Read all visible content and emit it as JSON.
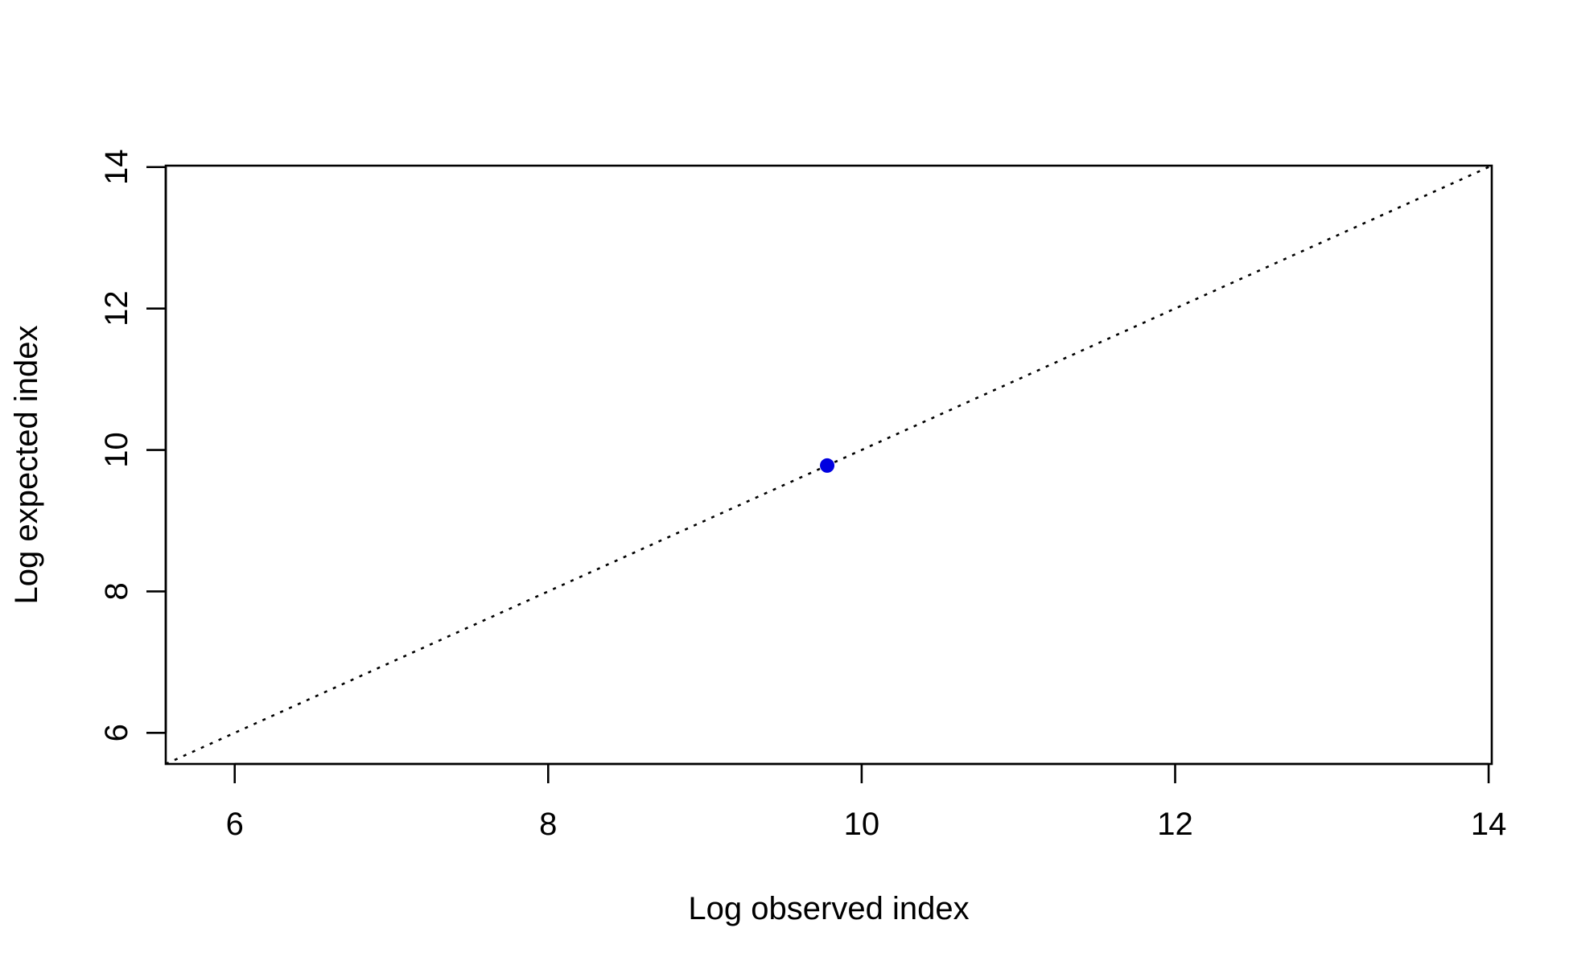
{
  "chart_data": {
    "type": "scatter",
    "title": "",
    "xlabel": "Log observed index",
    "ylabel": "Log expected index",
    "xlim": [
      5.56,
      14.02
    ],
    "ylim": [
      5.56,
      14.02
    ],
    "x_ticks": [
      6,
      8,
      10,
      12,
      14
    ],
    "y_ticks": [
      6,
      8,
      10,
      12,
      14
    ],
    "x_tick_labels": [
      "6",
      "8",
      "10",
      "12",
      "14"
    ],
    "y_tick_labels": [
      "6",
      "8",
      "10",
      "12",
      "14"
    ],
    "grid": false,
    "legend": "none",
    "series": [
      {
        "points": [
          {
            "x": 9.78,
            "y": 9.78
          }
        ],
        "color": "#0000e0"
      }
    ],
    "reference_line": {
      "type": "identity",
      "slope": 1,
      "intercept": 0,
      "style": "dotted",
      "color": "#000000"
    }
  }
}
